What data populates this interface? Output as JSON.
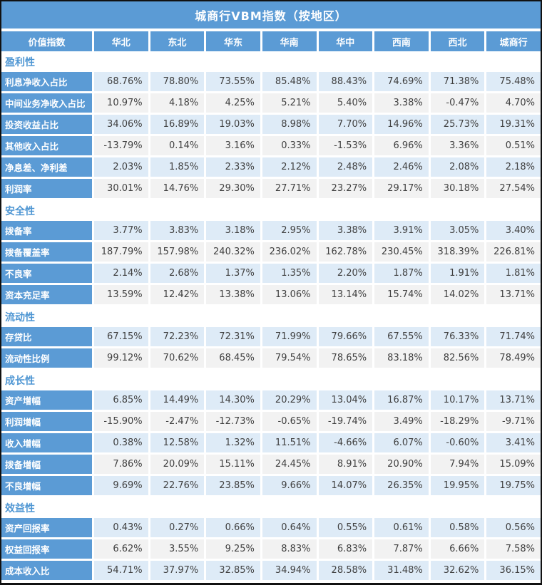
{
  "colors": {
    "header_blue": "#5b9bd5",
    "row_light_blue": "#deebf7",
    "row_light_gray": "#f2f2f2",
    "section_heading_blue": "#4e96d3",
    "value_text_color": "#404040"
  },
  "chart_data": {
    "type": "table",
    "title": "城商行VBM指数（按地区）",
    "columns": [
      "价值指数",
      "华北",
      "东北",
      "华东",
      "华南",
      "华中",
      "西南",
      "西北",
      "城商行"
    ],
    "sections": [
      {
        "name": "盈利性",
        "rows": [
          {
            "label": "利息净收入占比",
            "values": [
              "68.76%",
              "78.80%",
              "73.55%",
              "85.48%",
              "88.43%",
              "74.69%",
              "71.38%",
              "75.48%"
            ]
          },
          {
            "label": "中间业务净收入占比",
            "values": [
              "10.97%",
              "4.18%",
              "4.25%",
              "5.21%",
              "5.40%",
              "3.38%",
              "-0.47%",
              "4.70%"
            ]
          },
          {
            "label": "投资收益占比",
            "values": [
              "34.06%",
              "16.89%",
              "19.03%",
              "8.98%",
              "7.70%",
              "14.96%",
              "25.73%",
              "19.31%"
            ]
          },
          {
            "label": "其他收入占比",
            "values": [
              "-13.79%",
              "0.14%",
              "3.16%",
              "0.33%",
              "-1.53%",
              "6.96%",
              "3.36%",
              "0.51%"
            ]
          },
          {
            "label": "净息差、净利差",
            "values": [
              "2.03%",
              "1.85%",
              "2.33%",
              "2.12%",
              "2.48%",
              "2.46%",
              "2.08%",
              "2.18%"
            ]
          },
          {
            "label": "利润率",
            "values": [
              "30.01%",
              "14.76%",
              "29.30%",
              "27.71%",
              "23.27%",
              "29.17%",
              "30.18%",
              "27.54%"
            ]
          }
        ]
      },
      {
        "name": "安全性",
        "rows": [
          {
            "label": "拨备率",
            "values": [
              "3.77%",
              "3.83%",
              "3.18%",
              "2.95%",
              "3.38%",
              "3.91%",
              "3.05%",
              "3.40%"
            ]
          },
          {
            "label": "拨备覆盖率",
            "values": [
              "187.79%",
              "157.98%",
              "240.32%",
              "236.02%",
              "162.78%",
              "230.45%",
              "318.39%",
              "226.81%"
            ]
          },
          {
            "label": "不良率",
            "values": [
              "2.14%",
              "2.68%",
              "1.37%",
              "1.35%",
              "2.20%",
              "1.87%",
              "1.91%",
              "1.81%"
            ]
          },
          {
            "label": "资本充足率",
            "values": [
              "13.59%",
              "12.42%",
              "13.38%",
              "13.06%",
              "13.14%",
              "15.74%",
              "14.02%",
              "13.71%"
            ]
          }
        ]
      },
      {
        "name": "流动性",
        "rows": [
          {
            "label": "存贷比",
            "values": [
              "67.15%",
              "72.23%",
              "72.31%",
              "71.99%",
              "79.66%",
              "67.55%",
              "76.33%",
              "71.74%"
            ]
          },
          {
            "label": "流动性比例",
            "values": [
              "99.12%",
              "70.62%",
              "68.45%",
              "79.54%",
              "78.65%",
              "83.18%",
              "82.56%",
              "78.49%"
            ]
          }
        ]
      },
      {
        "name": "成长性",
        "rows": [
          {
            "label": "资产增幅",
            "values": [
              "6.85%",
              "14.49%",
              "14.30%",
              "20.29%",
              "13.04%",
              "16.87%",
              "10.17%",
              "13.71%"
            ]
          },
          {
            "label": "利润增幅",
            "values": [
              "-15.90%",
              "-2.47%",
              "-12.73%",
              "-0.65%",
              "-19.74%",
              "3.49%",
              "-18.29%",
              "-9.71%"
            ]
          },
          {
            "label": "收入增幅",
            "values": [
              "0.38%",
              "12.58%",
              "1.32%",
              "11.51%",
              "-4.66%",
              "6.07%",
              "-0.60%",
              "3.41%"
            ]
          },
          {
            "label": "拨备增幅",
            "values": [
              "7.86%",
              "20.09%",
              "15.11%",
              "24.45%",
              "8.91%",
              "20.90%",
              "7.94%",
              "15.09%"
            ]
          },
          {
            "label": "不良增幅",
            "values": [
              "9.69%",
              "22.76%",
              "23.85%",
              "9.66%",
              "14.07%",
              "26.35%",
              "19.95%",
              "19.75%"
            ]
          }
        ]
      },
      {
        "name": "效益性",
        "rows": [
          {
            "label": "资产回报率",
            "values": [
              "0.43%",
              "0.27%",
              "0.66%",
              "0.64%",
              "0.55%",
              "0.61%",
              "0.58%",
              "0.56%"
            ]
          },
          {
            "label": "权益回报率",
            "values": [
              "6.62%",
              "3.55%",
              "9.25%",
              "8.83%",
              "6.83%",
              "7.87%",
              "6.66%",
              "7.58%"
            ]
          },
          {
            "label": "成本收入比",
            "values": [
              "54.71%",
              "37.97%",
              "32.85%",
              "34.94%",
              "28.58%",
              "31.48%",
              "32.62%",
              "36.15%"
            ]
          }
        ]
      }
    ]
  }
}
